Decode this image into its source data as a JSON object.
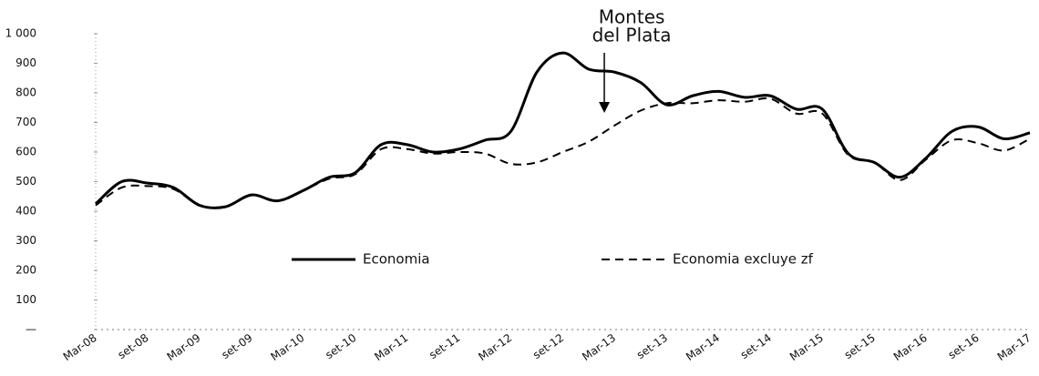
{
  "chart_data": {
    "type": "line",
    "categories": [
      "Mar-08",
      null,
      "set-08",
      null,
      "Mar-09",
      null,
      "set-09",
      null,
      "Mar-10",
      null,
      "set-10",
      null,
      "Mar-11",
      null,
      "set-11",
      null,
      "Mar-12",
      null,
      "set-12",
      null,
      "Mar-13",
      null,
      "set-13",
      null,
      "Mar-14",
      null,
      "set-14",
      null,
      "Mar-15",
      null,
      "set-15",
      null,
      "Mar-16",
      null,
      "set-16",
      null,
      "Mar-17"
    ],
    "series": [
      {
        "name": "Economia",
        "color": "#000000",
        "dash": false,
        "values": [
          425,
          500,
          495,
          480,
          420,
          415,
          455,
          435,
          470,
          515,
          530,
          625,
          625,
          600,
          610,
          640,
          670,
          870,
          935,
          880,
          870,
          835,
          760,
          790,
          805,
          785,
          790,
          745,
          745,
          595,
          565,
          515,
          580,
          670,
          685,
          645,
          665
        ]
      },
      {
        "name": "Economia excluye zf",
        "color": "#000000",
        "dash": true,
        "values": [
          420,
          480,
          485,
          475,
          420,
          415,
          455,
          435,
          470,
          510,
          525,
          610,
          610,
          595,
          600,
          595,
          560,
          565,
          600,
          635,
          690,
          740,
          765,
          765,
          775,
          770,
          780,
          730,
          730,
          590,
          565,
          505,
          575,
          640,
          630,
          605,
          645
        ]
      }
    ],
    "ylim": [
      0,
      1000
    ],
    "yticks": [
      {
        "value": 0,
        "label": "—"
      },
      100,
      200,
      300,
      400,
      500,
      600,
      700,
      800,
      900,
      {
        "value": 1000,
        "label": "1 000"
      }
    ],
    "grid": false,
    "legend": "center",
    "annotations": [
      {
        "lines": [
          "Montes",
          "del Plata"
        ],
        "category": 19.6
      }
    ]
  }
}
